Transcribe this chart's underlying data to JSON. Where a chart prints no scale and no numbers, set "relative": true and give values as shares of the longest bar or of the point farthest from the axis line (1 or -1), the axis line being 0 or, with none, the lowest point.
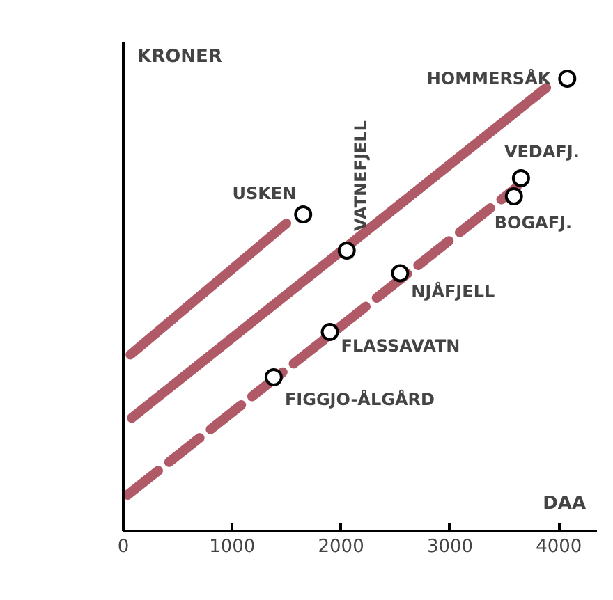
{
  "chart_data": {
    "type": "scatter",
    "relative": true,
    "xlabel": "DAA",
    "ylabel": "KRONER",
    "xlim": [
      0,
      4350
    ],
    "xticks": [
      0,
      1000,
      2000,
      3000,
      4000
    ],
    "grid": false,
    "series": [
      {
        "marker": "circle",
        "color": "#000000",
        "x": [
          1652,
          2052,
          4077,
          3652,
          3587,
          2542,
          1897,
          1381
        ],
        "values": [
          0.7,
          0.62,
          1,
          0.78,
          0.74,
          0.57,
          0.44,
          0.34
        ]
      },
      {
        "type": "line",
        "color": "#b05a68",
        "line_style": "solid",
        "x": [
          65,
          1497
        ],
        "values": [
          0.39,
          0.68
        ]
      },
      {
        "type": "line",
        "color": "#b05a68",
        "line_style": "solid",
        "x": [
          77,
          3884
        ],
        "values": [
          0.25,
          0.98
        ]
      },
      {
        "type": "line",
        "color": "#b05a68",
        "line_style": "dashed",
        "x": [
          39,
          3613
        ],
        "values": [
          0.08,
          0.76
        ]
      }
    ],
    "annotations": [
      {
        "text": "USKEN",
        "x": 1652,
        "y": 0.7
      },
      {
        "text": "VATNEFJELL",
        "x": 2052,
        "y": 0.62
      },
      {
        "text": "HOMMERSÅK",
        "x": 4077,
        "y": 1
      },
      {
        "text": "VEDAFJ.",
        "x": 3652,
        "y": 0.78
      },
      {
        "text": "BOGAFJ.",
        "x": 3587,
        "y": 0.74
      },
      {
        "text": "NJÅFJELL",
        "x": 2542,
        "y": 0.57
      },
      {
        "text": "FLASSAVATN",
        "x": 1897,
        "y": 0.44
      },
      {
        "text": "FIGGJO-ÅLGÅRD",
        "x": 1381,
        "y": 0.34
      },
      "0"
    ]
  }
}
